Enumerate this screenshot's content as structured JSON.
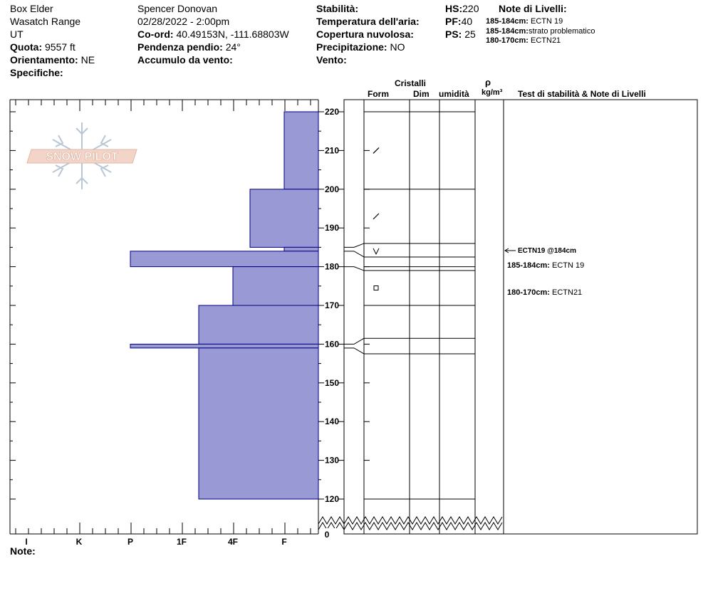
{
  "site": {
    "location": "Box Elder",
    "range": "Wasatch Range",
    "state": "UT",
    "elevation_label": "Quota:",
    "elevation_value": "9557 ft",
    "aspect_label": "Orientamento:",
    "aspect_value": "NE",
    "specifics_label": "Specifiche:"
  },
  "observer": {
    "name": "Spencer Donovan",
    "datetime": "02/28/2022 - 2:00pm",
    "coord_label": "Co-ord:",
    "coord_value": "40.49153N, -111.68803W",
    "slope_label": "Pendenza pendio:",
    "slope_value": "24°",
    "wind_loading_label": "Accumulo da vento:"
  },
  "conditions": {
    "stability_label": "Stabilità:",
    "air_temp_label": "Temperatura dell'aria:",
    "cloud_label": "Copertura nuvolosa:",
    "precip_label": "Precipitazione:",
    "precip_value": "NO",
    "wind_label": "Vento:"
  },
  "depths": {
    "hs_label": "HS:",
    "hs_value": "220",
    "pf_label": "PF:",
    "pf_value": "40",
    "ps_label": "PS:",
    "ps_value": "25"
  },
  "layer_notes": {
    "title": "Note di Livelli:",
    "items": [
      {
        "range": "185-184cm:",
        "text": "ECTN 19"
      },
      {
        "range": "185-184cm:",
        "text": "strato problematico"
      },
      {
        "range": "180-170cm:",
        "text": "ECTN21"
      }
    ]
  },
  "columns": {
    "crystals": "Cristalli",
    "form": "Form",
    "dim": "Dim",
    "moisture": "umidità",
    "rho": "ρ",
    "density_unit": "kg/m³",
    "tests": "Test di stabilità & Note di Livelli"
  },
  "test_notes": [
    {
      "label": "ECTN19 @184cm",
      "depth": 184
    },
    {
      "range": "185-184cm:",
      "text": "ECTN 19"
    },
    {
      "range": "180-170cm:",
      "text": "ECTN21"
    }
  ],
  "footer_label": "Note:",
  "logo_text": "SNOW PILOT",
  "colors": {
    "hardness_fill": "#9999d6",
    "hardness_stroke": "#000080"
  },
  "chart_data": {
    "type": "bar",
    "title": "",
    "xlabel": "",
    "ylabel": "",
    "hardness_scale": [
      "I",
      "K",
      "P",
      "1F",
      "4F",
      "F"
    ],
    "hardness_scale_order": [
      "F",
      "4F",
      "1F",
      "P",
      "K",
      "I"
    ],
    "ylim": [
      120,
      220
    ],
    "yticks": [
      220,
      210,
      200,
      190,
      180,
      170,
      160,
      150,
      140,
      130,
      120
    ],
    "ground_label": "0",
    "hardness_profile": [
      {
        "top": 220,
        "bottom": 200,
        "hardness": "F"
      },
      {
        "top": 200,
        "bottom": 185,
        "hardness": "4F+"
      },
      {
        "top": 185,
        "bottom": 184,
        "hardness": "F"
      },
      {
        "top": 184,
        "bottom": 180,
        "hardness": "P"
      },
      {
        "top": 180,
        "bottom": 170,
        "hardness": "4F"
      },
      {
        "top": 170,
        "bottom": 160,
        "hardness": "1F+"
      },
      {
        "top": 160,
        "bottom": 159,
        "hardness": "P"
      },
      {
        "top": 159,
        "bottom": 120,
        "hardness": "1F+"
      }
    ],
    "layer_boundaries": [
      220,
      200,
      186,
      182.5,
      180,
      179,
      170,
      161.5,
      157.5,
      120
    ],
    "crystal_forms": [
      {
        "depth": 210,
        "form": "precipitation-particle"
      },
      {
        "depth": 193,
        "form": "precipitation-particle"
      },
      {
        "depth": 184,
        "form": "depth-hoar"
      },
      {
        "depth": 174.5,
        "form": "faceted"
      }
    ]
  }
}
